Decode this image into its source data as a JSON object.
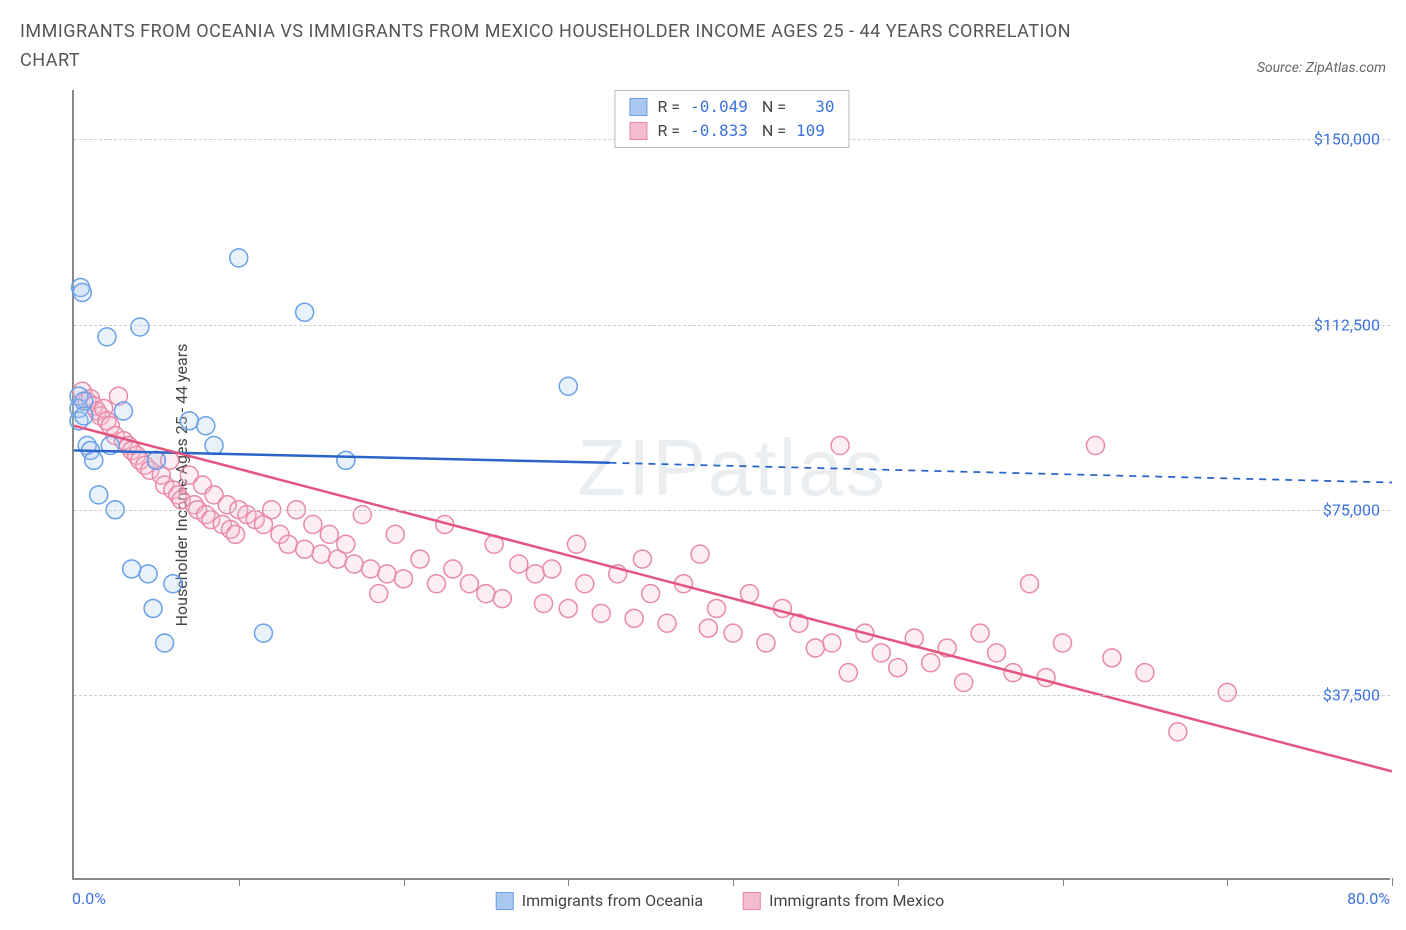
{
  "header": {
    "title": "IMMIGRANTS FROM OCEANIA VS IMMIGRANTS FROM MEXICO HOUSEHOLDER INCOME AGES 25 - 44 YEARS CORRELATION CHART",
    "source": "Source: ZipAtlas.com"
  },
  "watermark": {
    "bold": "ZIP",
    "thin": "atlas"
  },
  "chart": {
    "type": "scatter",
    "background_color": "#ffffff",
    "grid_color": "#cccccc",
    "axis_color": "#888888",
    "tick_label_color": "#3d73dd",
    "axis_label_color": "#444444",
    "ylabel": "Householder Income Ages 25 - 44 years",
    "ylabel_fontsize": 16,
    "xlim": [
      0,
      80
    ],
    "ylim": [
      0,
      160000
    ],
    "yticks": [
      37500,
      75000,
      112500,
      150000
    ],
    "ytick_labels": [
      "$37,500",
      "$75,000",
      "$112,500",
      "$150,000"
    ],
    "xticks": [
      0,
      10,
      20,
      30,
      40,
      50,
      60,
      70,
      80
    ],
    "xaxis_left_label": "0.0%",
    "xaxis_right_label": "80.0%",
    "marker_radius": 9,
    "marker_stroke_width": 1.5,
    "marker_fill_opacity": 0.25,
    "series": [
      {
        "name": "Immigrants from Oceania",
        "color_stroke": "#6aa0e8",
        "color_fill": "#a9c8f0",
        "trend_color": "#2a63c9",
        "trend_width": 2.5,
        "R": "-0.049",
        "N": "30",
        "trend": {
          "x1": 0,
          "y1": 87000,
          "x2": 32.5,
          "y2": 84500,
          "extend_x2": 80,
          "extend_y2": 80500
        },
        "points": [
          [
            0.3,
            98000
          ],
          [
            0.3,
            95500
          ],
          [
            0.3,
            93000
          ],
          [
            0.4,
            120000
          ],
          [
            0.5,
            119000
          ],
          [
            0.6,
            97000
          ],
          [
            0.6,
            94000
          ],
          [
            0.8,
            88000
          ],
          [
            1.0,
            87000
          ],
          [
            1.2,
            85000
          ],
          [
            1.5,
            78000
          ],
          [
            2.0,
            110000
          ],
          [
            2.2,
            88000
          ],
          [
            2.5,
            75000
          ],
          [
            3.0,
            95000
          ],
          [
            3.5,
            63000
          ],
          [
            4.0,
            112000
          ],
          [
            4.5,
            62000
          ],
          [
            4.8,
            55000
          ],
          [
            5.0,
            85000
          ],
          [
            5.5,
            48000
          ],
          [
            6.0,
            60000
          ],
          [
            7.0,
            93000
          ],
          [
            8.0,
            92000
          ],
          [
            8.5,
            88000
          ],
          [
            10.0,
            126000
          ],
          [
            11.5,
            50000
          ],
          [
            14.0,
            115000
          ],
          [
            16.5,
            85000
          ],
          [
            30.0,
            100000
          ]
        ]
      },
      {
        "name": "Immigrants from Mexico",
        "color_stroke": "#e88aa8",
        "color_fill": "#f5bccf",
        "trend_color": "#e5567f",
        "trend_width": 2.5,
        "R": "-0.833",
        "N": "109",
        "trend": {
          "x1": 0,
          "y1": 92000,
          "x2": 80,
          "y2": 22000
        },
        "points": [
          [
            0.5,
            99000
          ],
          [
            0.8,
            97000
          ],
          [
            1.0,
            97500
          ],
          [
            1.2,
            96000
          ],
          [
            1.4,
            95000
          ],
          [
            1.6,
            94000
          ],
          [
            1.8,
            95500
          ],
          [
            2.0,
            93000
          ],
          [
            2.2,
            92000
          ],
          [
            2.5,
            90000
          ],
          [
            2.7,
            98000
          ],
          [
            3.0,
            89000
          ],
          [
            3.3,
            88000
          ],
          [
            3.5,
            87000
          ],
          [
            3.8,
            86000
          ],
          [
            4.0,
            85000
          ],
          [
            4.3,
            84000
          ],
          [
            4.6,
            83000
          ],
          [
            5.0,
            85000
          ],
          [
            5.3,
            82000
          ],
          [
            5.5,
            80000
          ],
          [
            5.8,
            85000
          ],
          [
            6.0,
            79000
          ],
          [
            6.3,
            78000
          ],
          [
            6.5,
            77000
          ],
          [
            7.0,
            82000
          ],
          [
            7.3,
            76000
          ],
          [
            7.5,
            75000
          ],
          [
            7.8,
            80000
          ],
          [
            8.0,
            74000
          ],
          [
            8.3,
            73000
          ],
          [
            8.5,
            78000
          ],
          [
            9.0,
            72000
          ],
          [
            9.3,
            76000
          ],
          [
            9.5,
            71000
          ],
          [
            9.8,
            70000
          ],
          [
            10.0,
            75000
          ],
          [
            10.5,
            74000
          ],
          [
            11.0,
            73000
          ],
          [
            11.5,
            72000
          ],
          [
            12.0,
            75000
          ],
          [
            12.5,
            70000
          ],
          [
            13.0,
            68000
          ],
          [
            13.5,
            75000
          ],
          [
            14.0,
            67000
          ],
          [
            14.5,
            72000
          ],
          [
            15.0,
            66000
          ],
          [
            15.5,
            70000
          ],
          [
            16.0,
            65000
          ],
          [
            16.5,
            68000
          ],
          [
            17.0,
            64000
          ],
          [
            17.5,
            74000
          ],
          [
            18.0,
            63000
          ],
          [
            18.5,
            58000
          ],
          [
            19.0,
            62000
          ],
          [
            19.5,
            70000
          ],
          [
            20.0,
            61000
          ],
          [
            21.0,
            65000
          ],
          [
            22.0,
            60000
          ],
          [
            22.5,
            72000
          ],
          [
            23.0,
            63000
          ],
          [
            24.0,
            60000
          ],
          [
            25.0,
            58000
          ],
          [
            25.5,
            68000
          ],
          [
            26.0,
            57000
          ],
          [
            27.0,
            64000
          ],
          [
            28.0,
            62000
          ],
          [
            28.5,
            56000
          ],
          [
            29.0,
            63000
          ],
          [
            30.0,
            55000
          ],
          [
            30.5,
            68000
          ],
          [
            31.0,
            60000
          ],
          [
            32.0,
            54000
          ],
          [
            33.0,
            62000
          ],
          [
            34.0,
            53000
          ],
          [
            34.5,
            65000
          ],
          [
            35.0,
            58000
          ],
          [
            36.0,
            52000
          ],
          [
            37.0,
            60000
          ],
          [
            38.0,
            66000
          ],
          [
            38.5,
            51000
          ],
          [
            39.0,
            55000
          ],
          [
            40.0,
            50000
          ],
          [
            41.0,
            58000
          ],
          [
            42.0,
            48000
          ],
          [
            43.0,
            55000
          ],
          [
            44.0,
            52000
          ],
          [
            45.0,
            47000
          ],
          [
            46.0,
            48000
          ],
          [
            46.5,
            88000
          ],
          [
            47.0,
            42000
          ],
          [
            48.0,
            50000
          ],
          [
            49.0,
            46000
          ],
          [
            50.0,
            43000
          ],
          [
            51.0,
            49000
          ],
          [
            52.0,
            44000
          ],
          [
            53.0,
            47000
          ],
          [
            54.0,
            40000
          ],
          [
            55.0,
            50000
          ],
          [
            56.0,
            46000
          ],
          [
            57.0,
            42000
          ],
          [
            58.0,
            60000
          ],
          [
            59.0,
            41000
          ],
          [
            60.0,
            48000
          ],
          [
            62.0,
            88000
          ],
          [
            63.0,
            45000
          ],
          [
            65.0,
            42000
          ],
          [
            67.0,
            30000
          ],
          [
            70.0,
            38000
          ]
        ]
      }
    ],
    "legend_bottom": [
      {
        "label": "Immigrants from Oceania",
        "swatch_fill": "#a9c8f0",
        "swatch_stroke": "#6aa0e8"
      },
      {
        "label": "Immigrants from Mexico",
        "swatch_fill": "#f5bccf",
        "swatch_stroke": "#e88aa8"
      }
    ]
  }
}
